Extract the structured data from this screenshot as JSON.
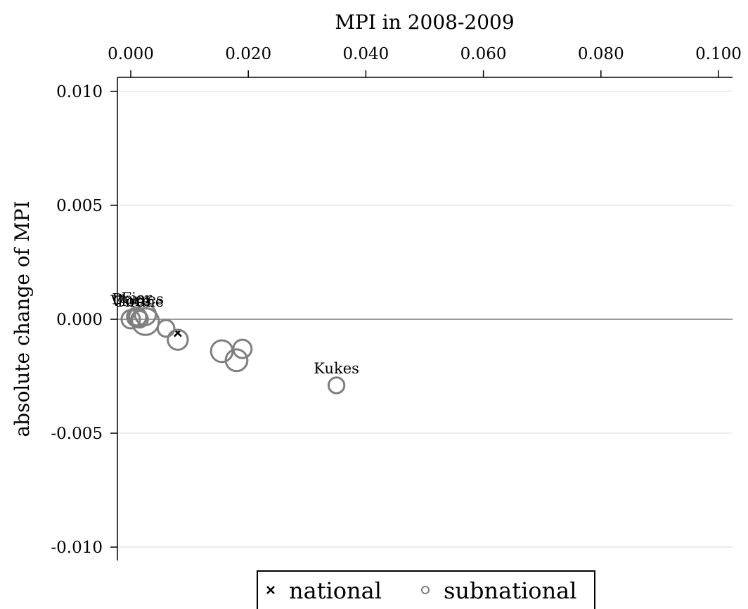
{
  "chart_data": {
    "type": "scatter",
    "title": "",
    "xlabel": "MPI in 2008-2009",
    "ylabel": "absolute change of MPI",
    "xlim": [
      0.0,
      0.1
    ],
    "ylim": [
      -0.0105,
      0.0105
    ],
    "x_ticks": [
      "0.000",
      "0.020",
      "0.040",
      "0.060",
      "0.080",
      "0.100"
    ],
    "y_ticks": [
      "0.010",
      "0.005",
      "0.000",
      "-0.005",
      "-0.010"
    ],
    "x_axis_position": "top",
    "grid": "horizontal",
    "reference_line_y": 0,
    "legend_position": "bottom",
    "series": [
      {
        "name": "national",
        "marker": "x",
        "color": "#000000",
        "points": [
          {
            "x": 0.008,
            "y": -0.0006,
            "size": 1,
            "label": ""
          }
        ]
      },
      {
        "name": "subnational",
        "marker": "circle",
        "color": "#7f7f7f",
        "points": [
          {
            "x": 0.0,
            "y": 0.0,
            "size": 1.0,
            "label": "Vlore"
          },
          {
            "x": 0.001,
            "y": 0.0001,
            "size": 1.1,
            "label": "Fier"
          },
          {
            "x": 0.0015,
            "y": 0.0,
            "size": 0.8,
            "label": "Tirane"
          },
          {
            "x": 0.0012,
            "y": 0.0001,
            "size": 0.9,
            "label": "Durres"
          },
          {
            "x": 0.0025,
            "y": 0.0002,
            "size": 1.3,
            "label": ""
          },
          {
            "x": 0.0025,
            "y": -0.0001,
            "size": 2.0,
            "label": ""
          },
          {
            "x": 0.006,
            "y": -0.0004,
            "size": 0.8,
            "label": ""
          },
          {
            "x": 0.008,
            "y": -0.0009,
            "size": 1.2,
            "label": ""
          },
          {
            "x": 0.0155,
            "y": -0.0014,
            "size": 1.4,
            "label": ""
          },
          {
            "x": 0.018,
            "y": -0.0018,
            "size": 1.4,
            "label": ""
          },
          {
            "x": 0.019,
            "y": -0.0013,
            "size": 1.0,
            "label": ""
          },
          {
            "x": 0.035,
            "y": -0.0029,
            "size": 0.7,
            "label": "Kukes"
          }
        ]
      }
    ]
  }
}
